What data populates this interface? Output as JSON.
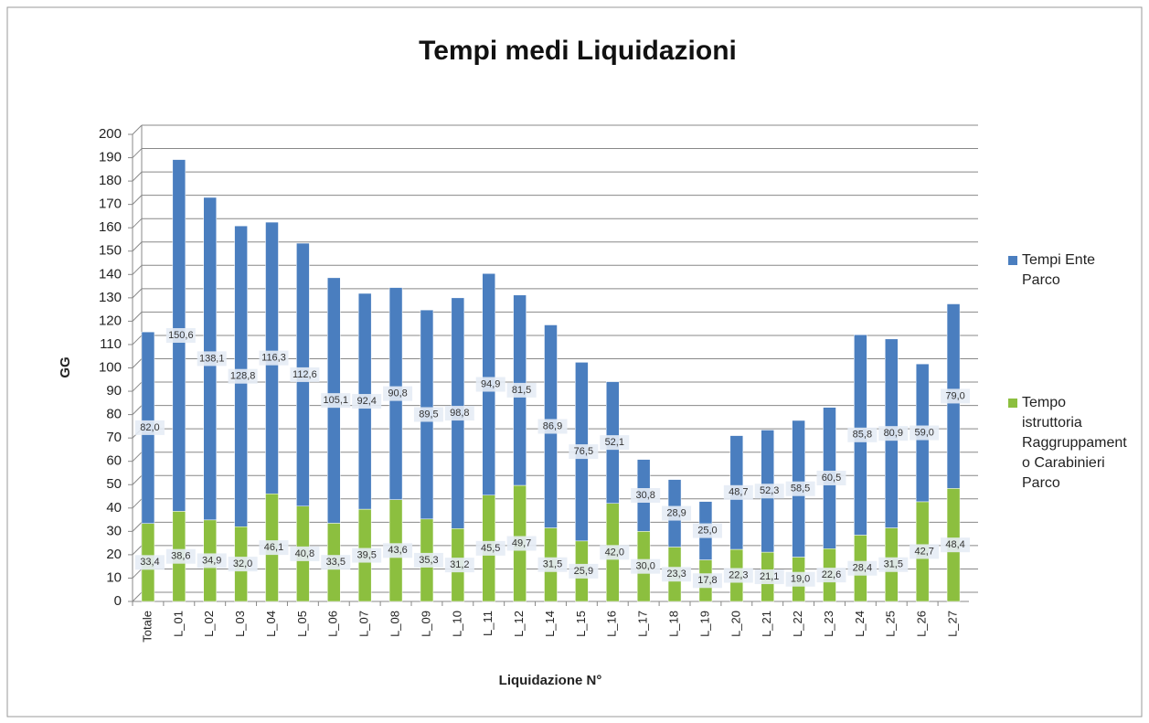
{
  "chart_data": {
    "type": "stacked_bar",
    "title": "Tempi medi Liquidazioni",
    "x_label": "Liquidazione N°",
    "y_label": "GG",
    "categories": [
      "Totale",
      "L_01",
      "L_02",
      "L_03",
      "L_04",
      "L_05",
      "L_06",
      "L_07",
      "L_08",
      "L_09",
      "L_10",
      "L_11",
      "L_12",
      "L_14",
      "L_15",
      "L_16",
      "L_17",
      "L_18",
      "L_19",
      "L_20",
      "L_21",
      "L_22",
      "L_23",
      "L_24",
      "L_25",
      "L_26",
      "L_27"
    ],
    "series": [
      {
        "name": "Tempi Ente Parco",
        "color": "#4a7ebf",
        "values": [
          82.0,
          150.6,
          138.1,
          128.8,
          116.3,
          112.6,
          105.1,
          92.4,
          90.8,
          89.5,
          98.8,
          94.9,
          81.5,
          86.9,
          76.5,
          52.1,
          30.8,
          28.9,
          25.0,
          48.7,
          52.3,
          58.5,
          60.5,
          85.8,
          80.9,
          59.0,
          79.0
        ],
        "value_labels": [
          "82,0",
          "150,6",
          "138,1",
          "128,8",
          "116,3",
          "112,6",
          "105,1",
          "92,4",
          "90,8",
          "89,5",
          "98,8",
          "94,9",
          "81,5",
          "86,9",
          "76,5",
          "52,1",
          "30,8",
          "28,9",
          "25,0",
          "48,7",
          "52,3",
          "58,5",
          "60,5",
          "85,8",
          "80,9",
          "59,0",
          "79,0"
        ]
      },
      {
        "name": "Tempo istruttoria Raggruppamento Carabinieri Parco",
        "color": "#8cbf3f",
        "values": [
          33.4,
          38.6,
          34.9,
          32.0,
          46.1,
          40.8,
          33.5,
          39.5,
          43.6,
          35.3,
          31.2,
          45.5,
          49.7,
          31.5,
          25.9,
          42.0,
          30.0,
          23.3,
          17.8,
          22.3,
          21.1,
          19.0,
          22.6,
          28.4,
          31.5,
          42.7,
          48.4
        ],
        "value_labels": [
          "33,4",
          "38,6",
          "34,9",
          "32,0",
          "46,1",
          "40,8",
          "33,5",
          "39,5",
          "43,6",
          "35,3",
          "31,2",
          "45,5",
          "49,7",
          "31,5",
          "25,9",
          "42,0",
          "30,0",
          "23,3",
          "17,8",
          "22,3",
          "21,1",
          "19,0",
          "22,6",
          "28,4",
          "31,5",
          "42,7",
          "48,4"
        ]
      }
    ],
    "stack_order": "bottom-up-reversed",
    "ylim": [
      0,
      200
    ],
    "yticks": [
      0,
      10,
      20,
      30,
      40,
      50,
      60,
      70,
      80,
      90,
      100,
      110,
      120,
      130,
      140,
      150,
      160,
      170,
      180,
      190,
      200
    ],
    "grid": true,
    "legend": "right"
  }
}
